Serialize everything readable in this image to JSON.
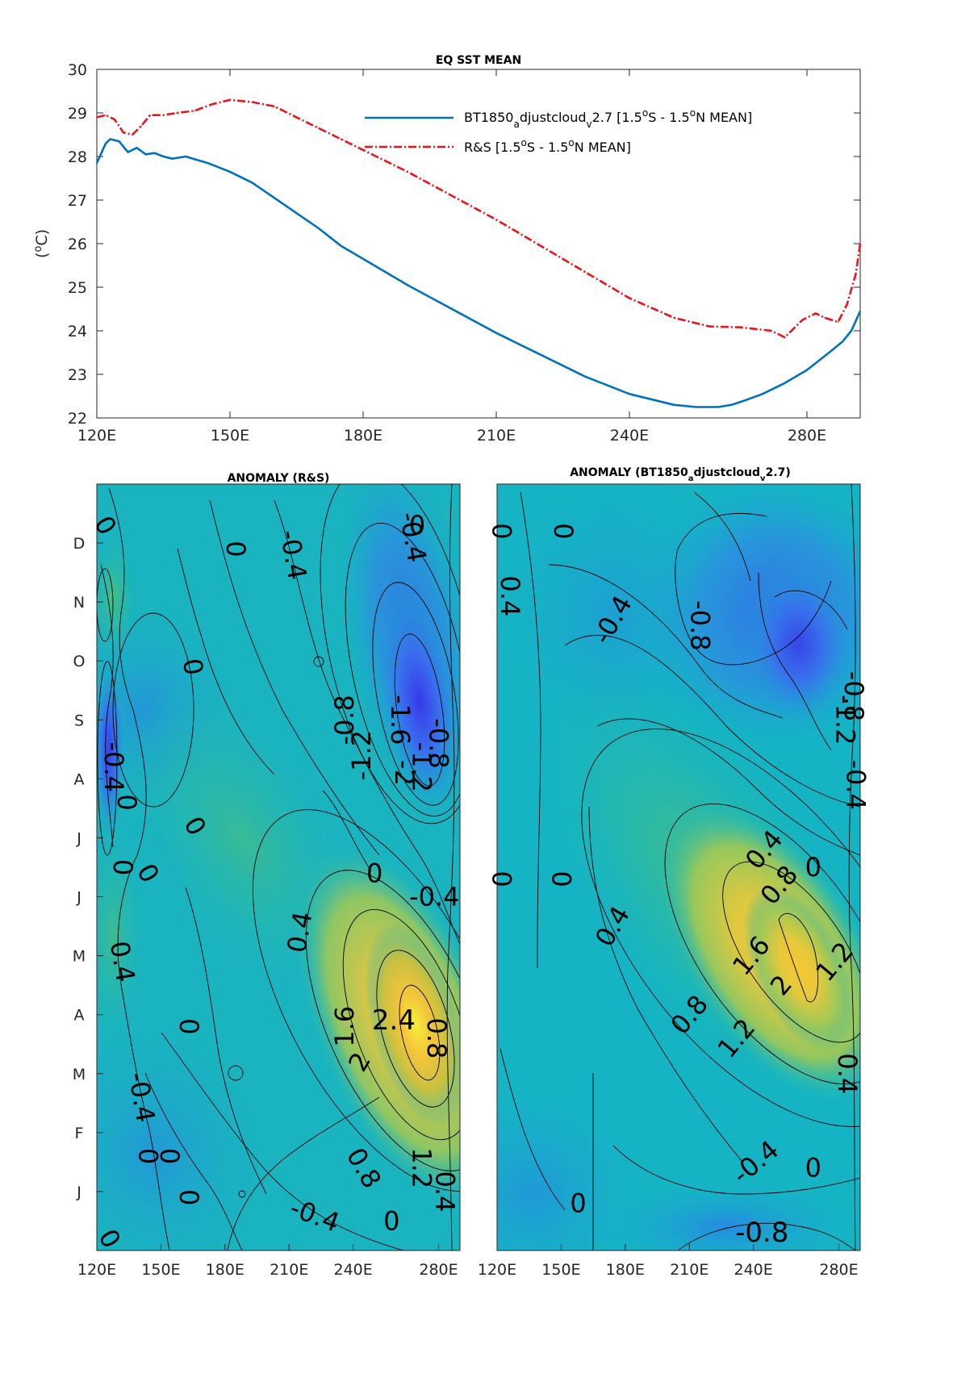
{
  "chart_data": [
    {
      "type": "line",
      "title": "EQ SST MEAN",
      "xlabel": "",
      "ylabel": "(°C)",
      "ylim": [
        22,
        30
      ],
      "xlim": [
        120,
        292
      ],
      "x_ticks": [
        "120E",
        "150E",
        "180E",
        "210E",
        "240E",
        "280E"
      ],
      "x_tick_values": [
        120,
        150,
        180,
        210,
        240,
        280
      ],
      "y_ticks": [
        "22",
        "23",
        "24",
        "25",
        "26",
        "27",
        "28",
        "29",
        "30"
      ],
      "legend_position": "top-right",
      "grid": false,
      "series": [
        {
          "name_parts": [
            "BT1850",
            "a",
            "djustcloud",
            "v",
            "2.7 [1.5",
            "o",
            "S - 1.5",
            "o",
            "N MEAN]"
          ],
          "color": "#0072BD",
          "style": "solid",
          "x": [
            120,
            122,
            123,
            125,
            127,
            129,
            131,
            133,
            135,
            137,
            140,
            145,
            150,
            155,
            160,
            165,
            170,
            175,
            180,
            190,
            200,
            210,
            220,
            230,
            240,
            250,
            255,
            260,
            263,
            266,
            270,
            275,
            280,
            285,
            288,
            290,
            292
          ],
          "y": [
            27.85,
            28.3,
            28.4,
            28.35,
            28.1,
            28.2,
            28.05,
            28.08,
            28.0,
            27.95,
            28.0,
            27.85,
            27.65,
            27.4,
            27.05,
            26.7,
            26.35,
            25.95,
            25.65,
            25.05,
            24.5,
            23.95,
            23.45,
            22.95,
            22.55,
            22.3,
            22.25,
            22.25,
            22.3,
            22.4,
            22.55,
            22.8,
            23.1,
            23.5,
            23.75,
            24.0,
            24.45
          ]
        },
        {
          "name_parts": [
            "R&S [1.5",
            "o",
            "S - 1.5",
            "o",
            "N MEAN]"
          ],
          "color": "#E8151B",
          "style": "dash-dot",
          "x": [
            120,
            122,
            124,
            126,
            128,
            130,
            132,
            135,
            138,
            142,
            146,
            150,
            155,
            160,
            165,
            170,
            175,
            180,
            190,
            200,
            210,
            220,
            230,
            240,
            250,
            258,
            265,
            272,
            275,
            279,
            282,
            284,
            287,
            289,
            291,
            292
          ],
          "y": [
            28.9,
            28.95,
            28.85,
            28.55,
            28.5,
            28.7,
            28.95,
            28.95,
            29.0,
            29.05,
            29.2,
            29.3,
            29.25,
            29.15,
            28.9,
            28.65,
            28.4,
            28.15,
            27.65,
            27.1,
            26.55,
            25.95,
            25.35,
            24.75,
            24.3,
            24.1,
            24.08,
            24.0,
            23.85,
            24.25,
            24.4,
            24.3,
            24.2,
            24.6,
            25.3,
            26.0
          ]
        }
      ]
    },
    {
      "type": "heatmap",
      "title": "ANOMALY (R&S)",
      "xlabel": "",
      "ylabel": "",
      "x_ticks": [
        "120E",
        "150E",
        "180E",
        "210E",
        "240E",
        "280E"
      ],
      "x_tick_values": [
        120,
        150,
        180,
        210,
        240,
        280
      ],
      "xlim": [
        120,
        290
      ],
      "y_ticks": [
        "J",
        "F",
        "M",
        "A",
        "M",
        "J",
        "J",
        "A",
        "S",
        "O",
        "N",
        "D"
      ],
      "contour_labels": [
        {
          "text": "0",
          "x": 124,
          "y": 12.3,
          "rot": 60
        },
        {
          "text": "0",
          "x": 126,
          "y": 0.2,
          "rot": 60
        },
        {
          "text": "0",
          "x": 185,
          "y": 11.9,
          "rot": 90
        },
        {
          "text": "-0.4",
          "x": 212,
          "y": 11.8,
          "rot": 80
        },
        {
          "text": "0",
          "x": 270,
          "y": 12.3,
          "rot": 0
        },
        {
          "text": "-0.4",
          "x": 268,
          "y": 12.1,
          "rot": 80
        },
        {
          "text": "0",
          "x": 165,
          "y": 9.9,
          "rot": 80
        },
        {
          "text": "-0.8",
          "x": 236,
          "y": 9.0,
          "rot": -90
        },
        {
          "text": "-1.2",
          "x": 244,
          "y": 8.4,
          "rot": -90
        },
        {
          "text": "-1.6",
          "x": 262,
          "y": 9.0,
          "rot": 90
        },
        {
          "text": "-2",
          "x": 264,
          "y": 8.1,
          "rot": 90
        },
        {
          "text": "-1.2",
          "x": 272,
          "y": 8.2,
          "rot": 90
        },
        {
          "text": "-0.8",
          "x": 280,
          "y": 8.6,
          "rot": 90
        },
        {
          "text": "-0.4",
          "x": 128,
          "y": 8.2,
          "rot": 90
        },
        {
          "text": "0",
          "x": 134,
          "y": 7.6,
          "rot": 90
        },
        {
          "text": "0",
          "x": 166,
          "y": 7.2,
          "rot": 60
        },
        {
          "text": "0",
          "x": 132,
          "y": 6.5,
          "rot": 90
        },
        {
          "text": "0",
          "x": 144,
          "y": 6.4,
          "rot": 60
        },
        {
          "text": "0",
          "x": 250,
          "y": 6.4,
          "rot": 0
        },
        {
          "text": "-0.4",
          "x": 278,
          "y": 6.0,
          "rot": 0
        },
        {
          "text": "0.4",
          "x": 215,
          "y": 5.4,
          "rot": -80
        },
        {
          "text": "0.4",
          "x": 132,
          "y": 4.9,
          "rot": 80
        },
        {
          "text": "1.6",
          "x": 236,
          "y": 3.8,
          "rot": -90
        },
        {
          "text": "2.4",
          "x": 259,
          "y": 3.9,
          "rot": 0
        },
        {
          "text": "0.8",
          "x": 279,
          "y": 3.6,
          "rot": 90
        },
        {
          "text": "2",
          "x": 243,
          "y": 3.2,
          "rot": -60
        },
        {
          "text": "0",
          "x": 163,
          "y": 3.8,
          "rot": 90
        },
        {
          "text": "-0.4",
          "x": 141,
          "y": 2.6,
          "rot": 80
        },
        {
          "text": "0",
          "x": 144,
          "y": 1.6,
          "rot": 90
        },
        {
          "text": "0",
          "x": 154,
          "y": 1.6,
          "rot": 90
        },
        {
          "text": "0",
          "x": 163,
          "y": 0.9,
          "rot": 90
        },
        {
          "text": "0.8",
          "x": 245,
          "y": 1.4,
          "rot": 60
        },
        {
          "text": "1.2",
          "x": 272,
          "y": 1.4,
          "rot": 90
        },
        {
          "text": "0.4",
          "x": 283,
          "y": 1.0,
          "rot": 90
        },
        {
          "text": "-0.4",
          "x": 222,
          "y": 0.6,
          "rot": 20
        },
        {
          "text": "0",
          "x": 258,
          "y": 0.5,
          "rot": 0
        }
      ]
    },
    {
      "type": "heatmap",
      "title": "ANOMALY (BT1850_adjustcloud_v2.7)",
      "title_parts": [
        "ANOMALY (BT1850",
        "a",
        "djustcloud",
        "v",
        "2.7)"
      ],
      "xlabel": "",
      "ylabel": "",
      "x_ticks": [
        "120E",
        "150E",
        "180E",
        "210E",
        "240E",
        "280E"
      ],
      "x_tick_values": [
        120,
        150,
        180,
        210,
        240,
        280
      ],
      "xlim": [
        120,
        290
      ],
      "y_ticks": [],
      "contour_labels": [
        {
          "text": "0",
          "x": 122,
          "y": 12.2,
          "rot": 90
        },
        {
          "text": "0",
          "x": 151,
          "y": 12.2,
          "rot": 90
        },
        {
          "text": "0.4",
          "x": 126,
          "y": 11.1,
          "rot": 90
        },
        {
          "text": "-0.4",
          "x": 174,
          "y": 10.7,
          "rot": -60
        },
        {
          "text": "-0.8",
          "x": 215,
          "y": 10.6,
          "rot": 90
        },
        {
          "text": "-0.8",
          "x": 287,
          "y": 9.4,
          "rot": 90
        },
        {
          "text": "-1.2",
          "x": 283,
          "y": 9.0,
          "rot": 90
        },
        {
          "text": "-0.4",
          "x": 288,
          "y": 7.9,
          "rot": 90
        },
        {
          "text": "0",
          "x": 122,
          "y": 6.3,
          "rot": 90
        },
        {
          "text": "0",
          "x": 150,
          "y": 6.3,
          "rot": 90
        },
        {
          "text": "0.4",
          "x": 174,
          "y": 5.5,
          "rot": -60
        },
        {
          "text": "0.4",
          "x": 245,
          "y": 6.8,
          "rot": -50
        },
        {
          "text": "0.8",
          "x": 252,
          "y": 6.2,
          "rot": -50
        },
        {
          "text": "0",
          "x": 268,
          "y": 6.5,
          "rot": 0
        },
        {
          "text": "1.6",
          "x": 239,
          "y": 5.0,
          "rot": -50
        },
        {
          "text": "1.2",
          "x": 278,
          "y": 4.9,
          "rot": -50
        },
        {
          "text": "2",
          "x": 253,
          "y": 4.5,
          "rot": -50
        },
        {
          "text": "0.8",
          "x": 210,
          "y": 4.0,
          "rot": -50
        },
        {
          "text": "1.2",
          "x": 232,
          "y": 3.6,
          "rot": -50
        },
        {
          "text": "0.4",
          "x": 284,
          "y": 3.0,
          "rot": 90
        },
        {
          "text": "-0.4",
          "x": 241,
          "y": 1.5,
          "rot": -40
        },
        {
          "text": "0",
          "x": 268,
          "y": 1.4,
          "rot": 0
        },
        {
          "text": "0",
          "x": 158,
          "y": 0.8,
          "rot": 0
        },
        {
          "text": "-0.8",
          "x": 244,
          "y": 0.3,
          "rot": 0
        }
      ]
    }
  ]
}
